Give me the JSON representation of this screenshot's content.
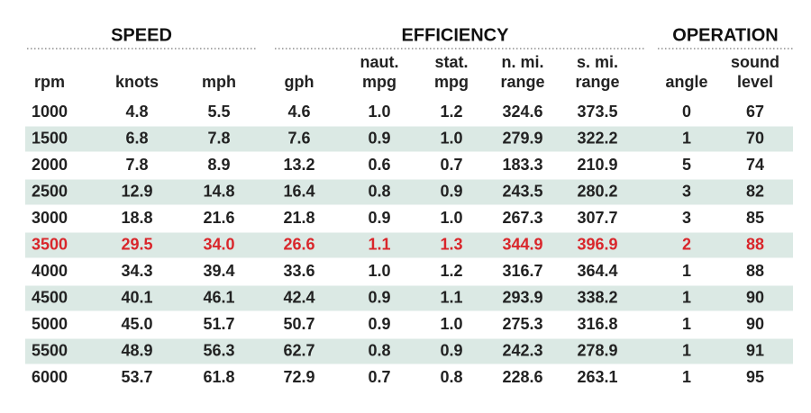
{
  "table": {
    "groups": [
      "SPEED",
      "EFFICIENCY",
      "OPERATION"
    ],
    "columns": [
      [
        "rpm"
      ],
      [
        "knots"
      ],
      [
        "mph"
      ],
      [
        "gph"
      ],
      [
        "naut.",
        "mpg"
      ],
      [
        "stat.",
        "mpg"
      ],
      [
        "n. mi.",
        "range"
      ],
      [
        "s. mi.",
        "range"
      ],
      [
        "angle"
      ],
      [
        "sound",
        "level"
      ]
    ],
    "rows": [
      [
        "1000",
        "4.8",
        "5.5",
        "4.6",
        "1.0",
        "1.2",
        "324.6",
        "373.5",
        "0",
        "67"
      ],
      [
        "1500",
        "6.8",
        "7.8",
        "7.6",
        "0.9",
        "1.0",
        "279.9",
        "322.2",
        "1",
        "70"
      ],
      [
        "2000",
        "7.8",
        "8.9",
        "13.2",
        "0.6",
        "0.7",
        "183.3",
        "210.9",
        "5",
        "74"
      ],
      [
        "2500",
        "12.9",
        "14.8",
        "16.4",
        "0.8",
        "0.9",
        "243.5",
        "280.2",
        "3",
        "82"
      ],
      [
        "3000",
        "18.8",
        "21.6",
        "21.8",
        "0.9",
        "1.0",
        "267.3",
        "307.7",
        "3",
        "85"
      ],
      [
        "3500",
        "29.5",
        "34.0",
        "26.6",
        "1.1",
        "1.3",
        "344.9",
        "396.9",
        "2",
        "88"
      ],
      [
        "4000",
        "34.3",
        "39.4",
        "33.6",
        "1.0",
        "1.2",
        "316.7",
        "364.4",
        "1",
        "88"
      ],
      [
        "4500",
        "40.1",
        "46.1",
        "42.4",
        "0.9",
        "1.1",
        "293.9",
        "338.2",
        "1",
        "90"
      ],
      [
        "5000",
        "45.0",
        "51.7",
        "50.7",
        "0.9",
        "1.0",
        "275.3",
        "316.8",
        "1",
        "90"
      ],
      [
        "5500",
        "48.9",
        "56.3",
        "62.7",
        "0.8",
        "0.9",
        "242.3",
        "278.9",
        "1",
        "91"
      ],
      [
        "6000",
        "53.7",
        "61.8",
        "72.9",
        "0.7",
        "0.8",
        "228.6",
        "263.1",
        "1",
        "95"
      ]
    ],
    "highlight_row": 5,
    "highlight_color": "#d9262b",
    "stripe_color": "#dbe9e4"
  }
}
